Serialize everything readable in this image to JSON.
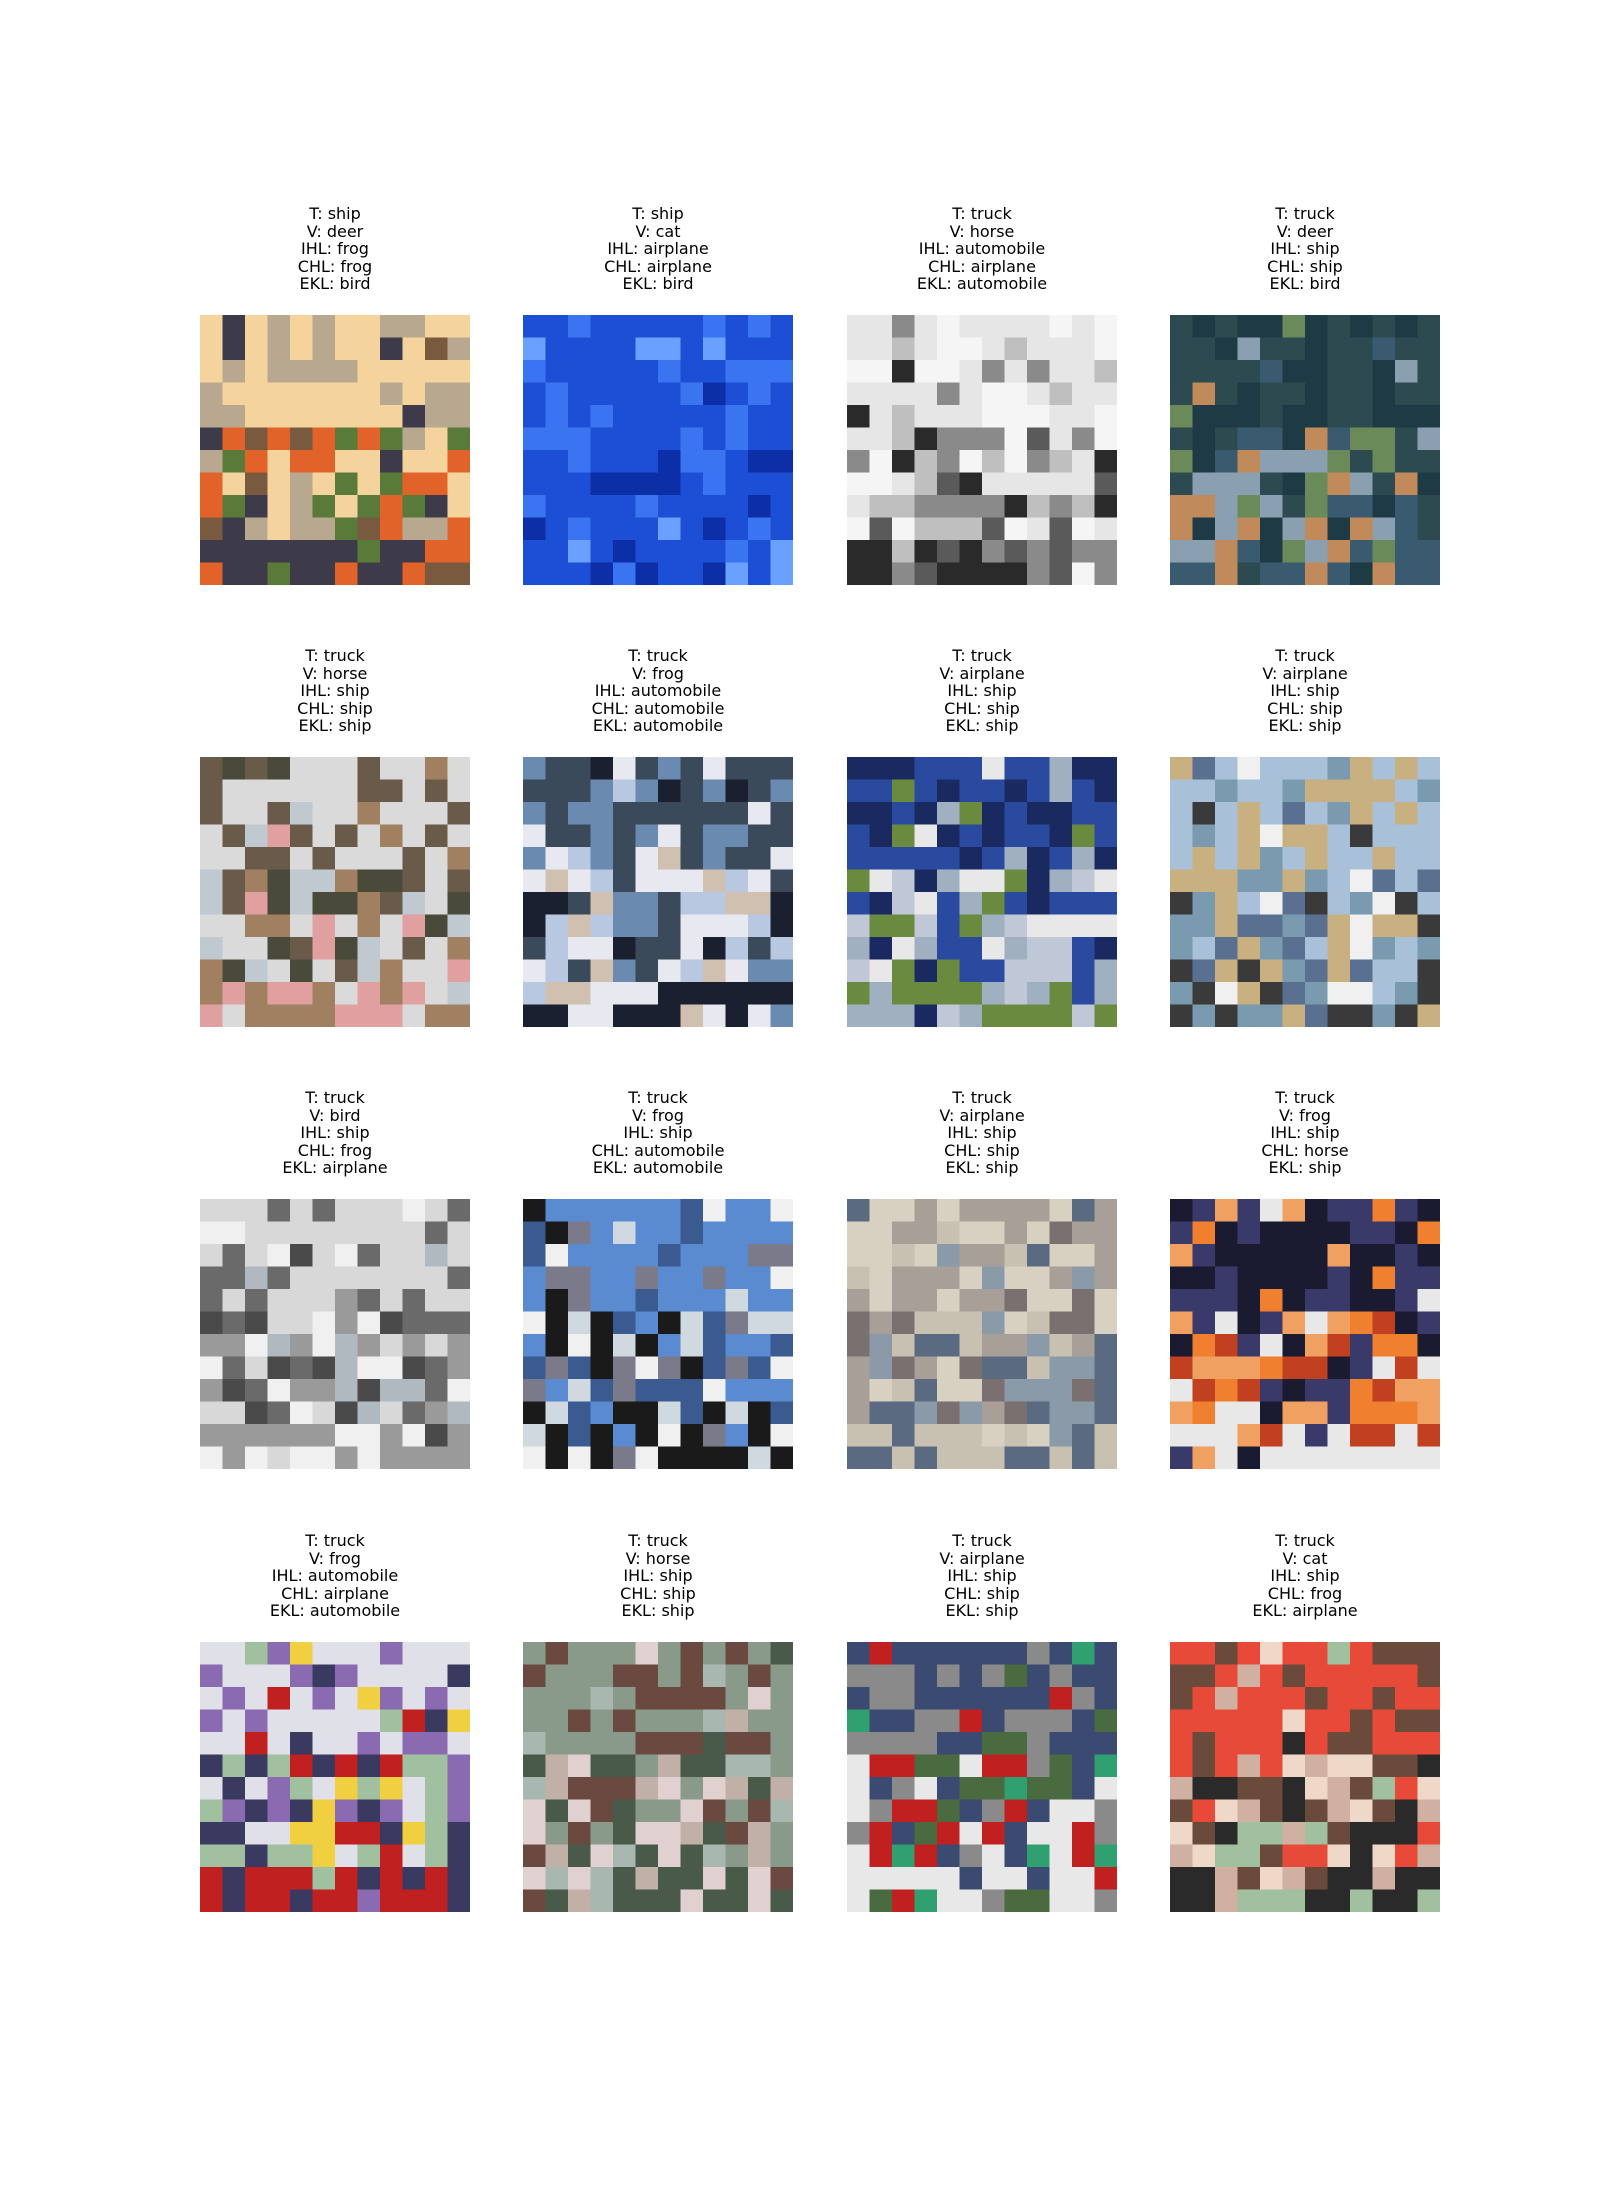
{
  "grid": {
    "rows": 4,
    "cols": 4,
    "items": [
      {
        "t": "T: ship",
        "v": "V: deer",
        "ihl": "IHL: frog",
        "chl": "CHL: frog",
        "ekl": "EKL: bird",
        "scene": "food-market",
        "palette": [
          "#f4d49c",
          "#7a5a3e",
          "#3d3a4a",
          "#e2632a",
          "#b9a890",
          "#5a7a3a"
        ]
      },
      {
        "t": "T: ship",
        "v": "V: cat",
        "ihl": "IHL: airplane",
        "chl": "CHL: airplane",
        "ekl": "EKL: bird",
        "scene": "blue-water",
        "palette": [
          "#1d4fd6",
          "#3a74f0",
          "#0c2fa8",
          "#6aa0ff",
          "#2a5ee8",
          "#1538b8"
        ]
      },
      {
        "t": "T: truck",
        "v": "V: horse",
        "ihl": "IHL: automobile",
        "chl": "CHL: airplane",
        "ekl": "EKL: automobile",
        "scene": "white-truck",
        "palette": [
          "#e6e6e6",
          "#bfbfbf",
          "#2a2a2a",
          "#8a8a8a",
          "#f5f5f5",
          "#5a5a5a"
        ]
      },
      {
        "t": "T: truck",
        "v": "V: deer",
        "ihl": "IHL: ship",
        "chl": "CHL: ship",
        "ekl": "EKL: bird",
        "scene": "dark-helmet",
        "palette": [
          "#2c4a50",
          "#6a8a5a",
          "#3a5a70",
          "#c08a5a",
          "#1e3a44",
          "#8aa0b0"
        ]
      },
      {
        "t": "T: truck",
        "v": "V: horse",
        "ihl": "IHL: ship",
        "chl": "CHL: ship",
        "ekl": "EKL: ship",
        "scene": "dirt-field",
        "palette": [
          "#dadada",
          "#4a4a3a",
          "#a08060",
          "#e0a0a0",
          "#6a5a4a",
          "#c0c8d0"
        ]
      },
      {
        "t": "T: truck",
        "v": "V: frog",
        "ihl": "IHL: automobile",
        "chl": "CHL: automobile",
        "ekl": "EKL: automobile",
        "scene": "cab-close",
        "palette": [
          "#3a4a5a",
          "#b8c8e0",
          "#1a2030",
          "#e8e8f0",
          "#6a8ab0",
          "#d0c0b0"
        ]
      },
      {
        "t": "T: truck",
        "v": "V: airplane",
        "ihl": "IHL: ship",
        "chl": "CHL: ship",
        "ekl": "EKL: ship",
        "scene": "blue-truck",
        "palette": [
          "#2a4aa0",
          "#e8e8e8",
          "#6a8a40",
          "#a0b0c0",
          "#1a2a60",
          "#c0c8d8"
        ]
      },
      {
        "t": "T: truck",
        "v": "V: airplane",
        "ihl": "IHL: ship",
        "chl": "CHL: ship",
        "ekl": "EKL: ship",
        "scene": "white-van",
        "palette": [
          "#a8c0d8",
          "#f0f0f0",
          "#3a3a3a",
          "#7a9ab0",
          "#c8b080",
          "#5a7090"
        ]
      },
      {
        "t": "T: truck",
        "v": "V: bird",
        "ihl": "IHL: ship",
        "chl": "CHL: frog",
        "ekl": "EKL: airplane",
        "scene": "grey-sign",
        "palette": [
          "#d8d8d8",
          "#4a4a4a",
          "#9a9a9a",
          "#f0f0f0",
          "#6a6a6a",
          "#b0b8c0"
        ]
      },
      {
        "t": "T: truck",
        "v": "V: frog",
        "ihl": "IHL: ship",
        "chl": "CHL: automobile",
        "ekl": "EKL: automobile",
        "scene": "sign-truck",
        "palette": [
          "#5a8ad0",
          "#d0d8e0",
          "#1a1a1a",
          "#f0f0f0",
          "#7a7a8a",
          "#3a5a90"
        ]
      },
      {
        "t": "T: truck",
        "v": "V: airplane",
        "ihl": "IHL: ship",
        "chl": "CHL: ship",
        "ekl": "EKL: ship",
        "scene": "track-blur",
        "palette": [
          "#a8a098",
          "#8a9aa8",
          "#c8c0b0",
          "#5a6a80",
          "#d8d0c0",
          "#7a7070"
        ]
      },
      {
        "t": "T: truck",
        "v": "V: frog",
        "ihl": "IHL: ship",
        "chl": "CHL: horse",
        "ekl": "EKL: ship",
        "scene": "orange-flag",
        "palette": [
          "#1a1a30",
          "#f08030",
          "#e8e8e8",
          "#c04020",
          "#3a3a6a",
          "#f0a060"
        ]
      },
      {
        "t": "T: truck",
        "v": "V: frog",
        "ihl": "IHL: automobile",
        "chl": "CHL: airplane",
        "ekl": "EKL: automobile",
        "scene": "colorful",
        "palette": [
          "#e0e0e8",
          "#f0d040",
          "#c02020",
          "#3a3a60",
          "#8a6ab0",
          "#a0c0a0"
        ]
      },
      {
        "t": "T: truck",
        "v": "V: horse",
        "ihl": "IHL: ship",
        "chl": "CHL: ship",
        "ekl": "EKL: ship",
        "scene": "race-road",
        "palette": [
          "#8a9a8a",
          "#c0b0a8",
          "#4a5a4a",
          "#e0d0d0",
          "#6a4a40",
          "#a8b8b0"
        ]
      },
      {
        "t": "T: truck",
        "v": "V: airplane",
        "ihl": "IHL: ship",
        "chl": "CHL: ship",
        "ekl": "EKL: ship",
        "scene": "red-race",
        "palette": [
          "#3a4a70",
          "#c02020",
          "#e8e8e8",
          "#4a6a40",
          "#8a8a8a",
          "#30a070"
        ]
      },
      {
        "t": "T: truck",
        "v": "V: cat",
        "ihl": "IHL: ship",
        "chl": "CHL: frog",
        "ekl": "EKL: airplane",
        "scene": "red-wing",
        "palette": [
          "#e84a3a",
          "#f0d8c8",
          "#2a2a2a",
          "#a0c0a0",
          "#6a4a3a",
          "#d0b0a0"
        ]
      }
    ]
  }
}
